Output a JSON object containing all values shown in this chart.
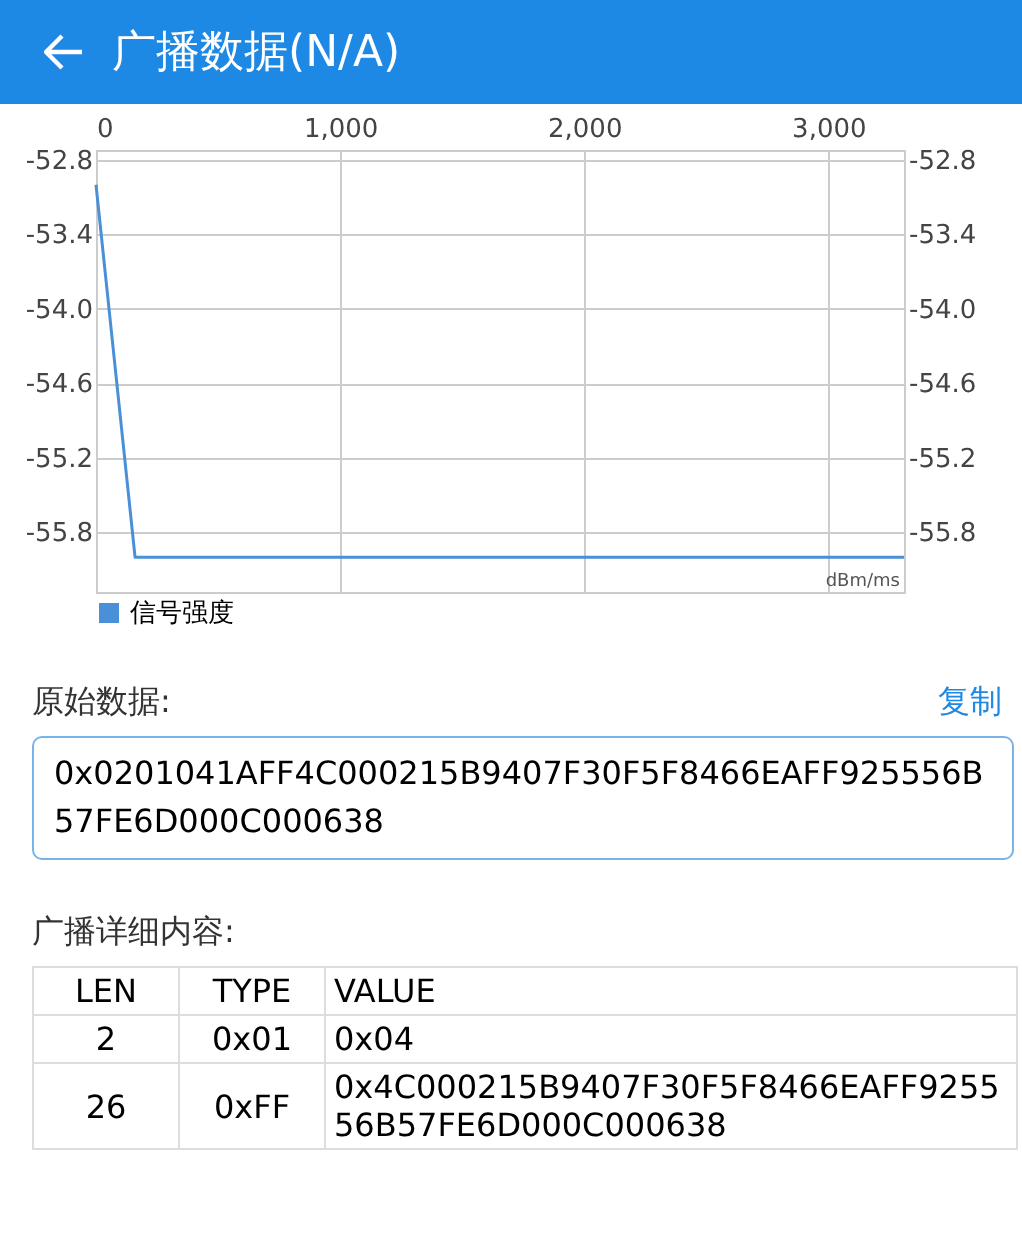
{
  "chart_data": {
    "type": "line",
    "title": "广播数据(N/A)",
    "xlabel": "dBm/ms",
    "x": [
      0,
      160,
      3310
    ],
    "series": [
      {
        "name": "信号强度",
        "color": "#4a90d9",
        "values": [
          -53.0,
          -56.0,
          -56.0
        ]
      }
    ],
    "xlim": [
      0,
      3310
    ],
    "xticks": [
      {
        "value": 0,
        "label": "0"
      },
      {
        "value": 1000,
        "label": "1,000"
      },
      {
        "value": 2000,
        "label": "2,000"
      },
      {
        "value": 3000,
        "label": "3,000"
      }
    ],
    "ylim": [
      -56.28,
      -52.72
    ],
    "yticks": [
      {
        "value": -52.8,
        "label": "-52.8"
      },
      {
        "value": -53.4,
        "label": "-53.4"
      },
      {
        "value": -54,
        "label": "-54.0"
      },
      {
        "value": -54.6,
        "label": "-54.6"
      },
      {
        "value": -55.2,
        "label": "-55.2"
      },
      {
        "value": -55.8,
        "label": "-55.8"
      }
    ],
    "y2lim": [
      -56.28,
      -52.72
    ],
    "y2ticks": [
      {
        "value": -52.8,
        "label": "-52.8"
      },
      {
        "value": -53.4,
        "label": "-53.4"
      },
      {
        "value": -54,
        "label": "-54.0"
      },
      {
        "value": -54.6,
        "label": "-54.6"
      },
      {
        "value": -55.2,
        "label": "-55.2"
      },
      {
        "value": -55.8,
        "label": "-55.8"
      }
    ],
    "grid": true,
    "legend": "bottom left",
    "marker": "none",
    "line_style": "solid",
    "annotations": [
      "原始数据:",
      "复制",
      "0x0201041AFF4C000215B9407F30F5F8466EAFF925556B57FE6D000C000638",
      "广播详细内容:",
      "LEN",
      "TYPE",
      "VALUE",
      "2",
      "0x01",
      "0x04",
      "26",
      "0xFF",
      "0x4C000215B9407F30F5F8466EAFF925556B57FE6D000C000638"
    ]
  }
}
